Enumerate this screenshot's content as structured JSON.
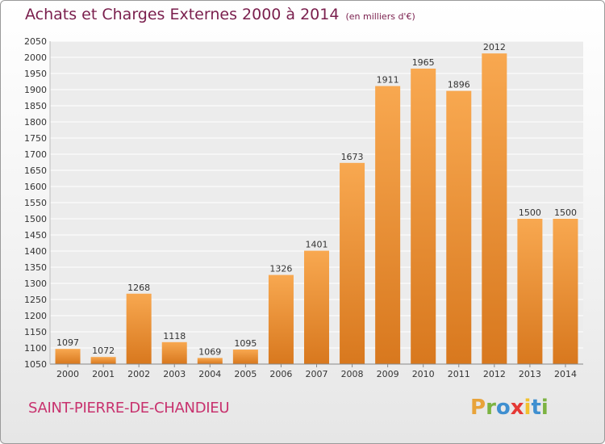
{
  "title": "Achats et Charges Externes 2000 à 2014",
  "subtitle": "(en milliers d'€)",
  "commune": "SAINT-PIERRE-DE-CHANDIEU",
  "logo": {
    "letters": [
      "P",
      "r",
      "o",
      "x",
      "i",
      "t",
      "i"
    ],
    "colors": [
      "#e8a33a",
      "#7cb342",
      "#3f8fd0",
      "#e53935",
      "#f2c12e",
      "#3f8fd0",
      "#7cb342"
    ]
  },
  "colors": {
    "bar_light": "#f8a850",
    "bar_dark": "#d8781e",
    "title": "#7a1f4d",
    "commune": "#c8326e"
  },
  "chart_data": {
    "type": "bar",
    "categories": [
      "2000",
      "2001",
      "2002",
      "2003",
      "2004",
      "2005",
      "2006",
      "2007",
      "2008",
      "2009",
      "2010",
      "2011",
      "2012",
      "2013",
      "2014"
    ],
    "values": [
      1097,
      1072,
      1268,
      1118,
      1069,
      1095,
      1326,
      1401,
      1673,
      1911,
      1965,
      1896,
      2012,
      1500,
      1500
    ],
    "title": "Achats et Charges Externes 2000 à 2014",
    "subtitle": "(en milliers d'€)",
    "xlabel": "",
    "ylabel": "",
    "ylim": [
      1050,
      2050
    ],
    "ytick_step": 50,
    "grid": true,
    "legend": "none"
  }
}
